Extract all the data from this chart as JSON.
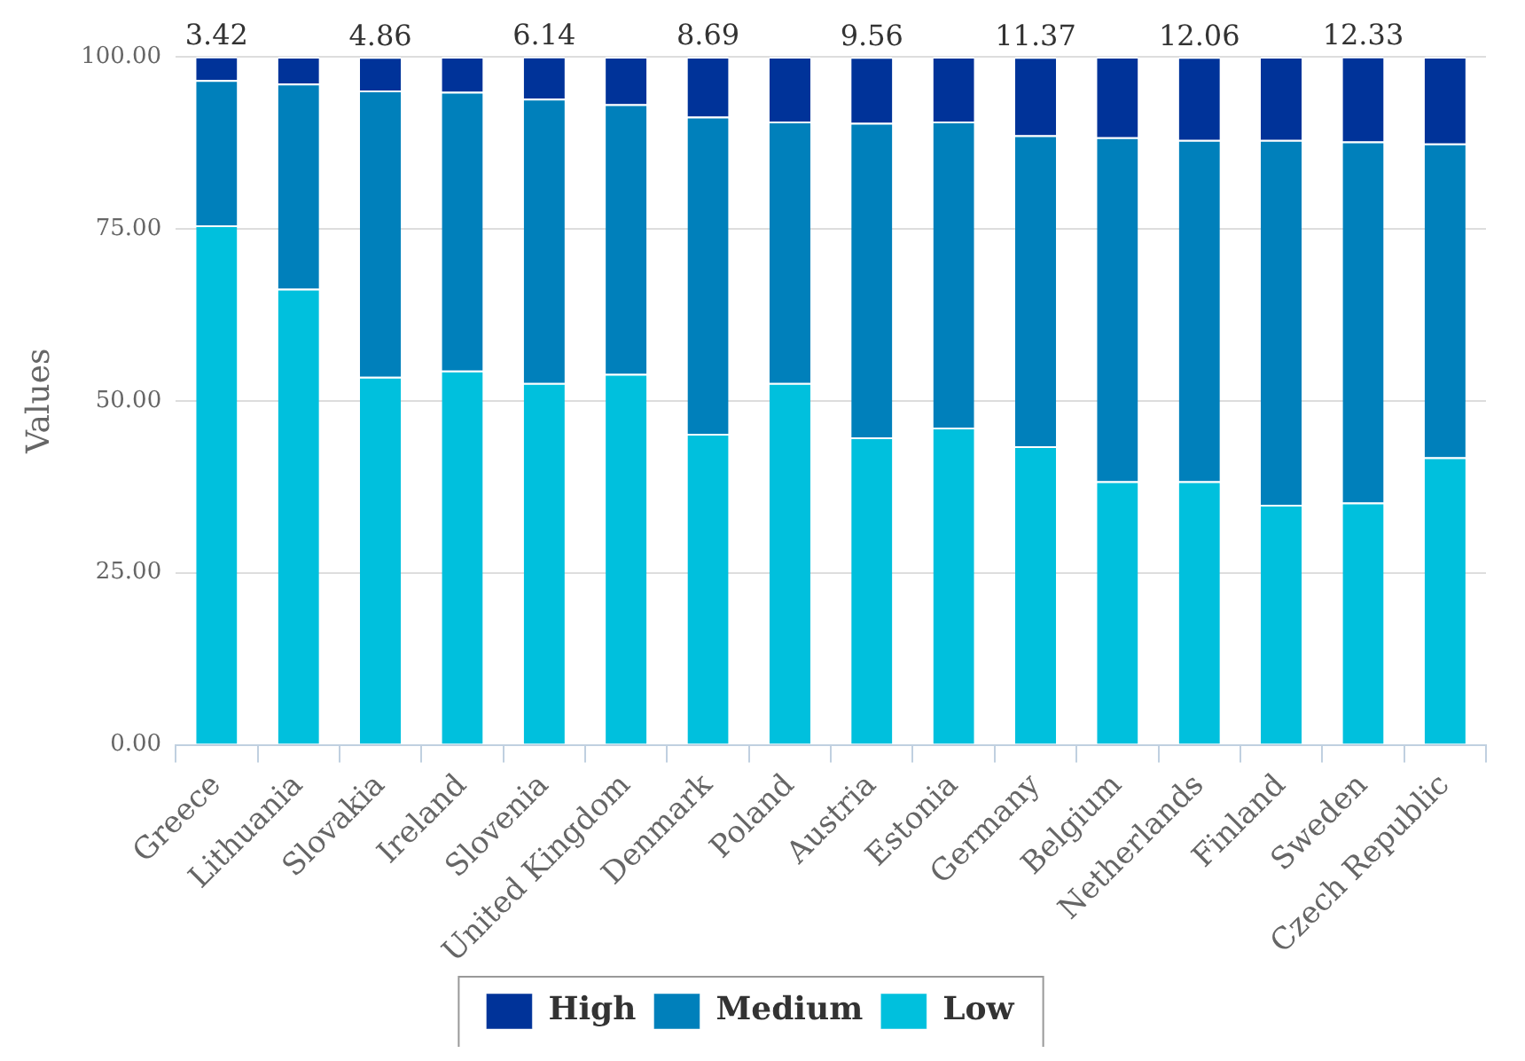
{
  "chart_data": {
    "type": "bar",
    "stacked": true,
    "ylabel": "Values",
    "categories": [
      "Greece",
      "Lithuania",
      "Slovakia",
      "Ireland",
      "Slovenia",
      "United Kingdom",
      "Denmark",
      "Poland",
      "Austria",
      "Estonia",
      "Germany",
      "Belgium",
      "Netherlands",
      "Finland",
      "Sweden",
      "Czech Republic"
    ],
    "series": [
      {
        "name": "Low",
        "color": "#00c0dd",
        "values": [
          75.5,
          66.3,
          53.5,
          54.4,
          52.6,
          53.9,
          45.2,
          52.6,
          44.7,
          46.1,
          43.4,
          38.3,
          38.3,
          34.9,
          35.2,
          41.8
        ]
      },
      {
        "name": "Medium",
        "color": "#0080bb",
        "values": [
          21.1,
          29.8,
          41.6,
          40.5,
          41.3,
          39.2,
          46.1,
          38.0,
          45.7,
          44.5,
          45.2,
          50.0,
          49.6,
          53.0,
          52.5,
          45.6
        ]
      },
      {
        "name": "High",
        "color": "#003399",
        "values": [
          3.42,
          3.9,
          4.86,
          5.1,
          6.14,
          6.9,
          8.69,
          9.4,
          9.56,
          9.4,
          11.37,
          11.7,
          12.06,
          12.1,
          12.33,
          12.6
        ],
        "value_labels": [
          "3.42",
          null,
          "4.86",
          null,
          "6.14",
          null,
          "8.69",
          null,
          "9.56",
          null,
          "11.37",
          null,
          "12.06",
          null,
          "12.33",
          null
        ]
      }
    ],
    "ylim": [
      0,
      100
    ],
    "yticks": [
      {
        "value": 0,
        "label": "0.00"
      },
      {
        "value": 25,
        "label": "25.00"
      },
      {
        "value": 50,
        "label": "50.00"
      },
      {
        "value": 75,
        "label": "75.00"
      },
      {
        "value": 100,
        "label": "100.00"
      }
    ],
    "grid": "y",
    "legend": "bottom"
  }
}
